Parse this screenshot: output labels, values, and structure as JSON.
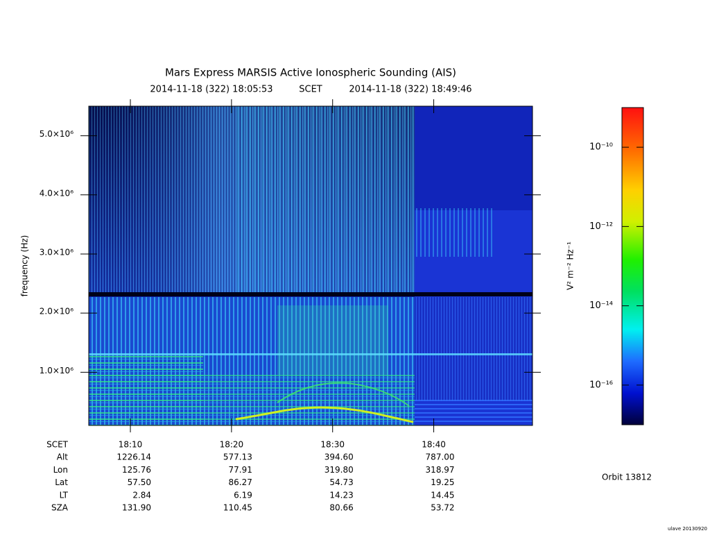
{
  "chart_data": {
    "type": "spectrogram",
    "title": "Mars Express MARSIS Active Ionospheric Sounding (AIS)",
    "subtitle_start": "2014-11-18 (322) 18:05:53",
    "subtitle_label": "SCET",
    "subtitle_end": "2014-11-18 (322) 18:49:46",
    "y_label": "frequency (Hz)",
    "xlim": [
      "2014-11-18T18:05:53Z",
      "2014-11-18T18:49:46Z"
    ],
    "xticks": [
      {
        "value": "2014-11-18T18:10:00Z",
        "label": "18:10"
      },
      {
        "value": "2014-11-18T18:20:00Z",
        "label": "18:20"
      },
      {
        "value": "2014-11-18T18:30:00Z",
        "label": "18:30"
      },
      {
        "value": "2014-11-18T18:40:00Z",
        "label": "18:40"
      }
    ],
    "ylim": [
      100000,
      5500000
    ],
    "yticks": [
      {
        "value": 1000000,
        "label": "1.0×10⁶"
      },
      {
        "value": 2000000,
        "label": "2.0×10⁶"
      },
      {
        "value": 3000000,
        "label": "3.0×10⁶"
      },
      {
        "value": 4000000,
        "label": "4.0×10⁶"
      },
      {
        "value": 5000000,
        "label": "5.0×10⁶"
      }
    ],
    "colorbar": {
      "label": "V² m⁻² Hz⁻¹",
      "log": true,
      "lim": [
        1e-17,
        1e-09
      ],
      "ticks": [
        {
          "value": 1e-10,
          "label": "10⁻¹⁰"
        },
        {
          "value": 1e-12,
          "label": "10⁻¹²"
        },
        {
          "value": 1e-14,
          "label": "10⁻¹⁴"
        },
        {
          "value": 1e-16,
          "label": "10⁻¹⁶"
        }
      ]
    },
    "ephemeris": {
      "time_label": "SCET",
      "rows": [
        {
          "label": "Alt",
          "values": [
            "1226.14",
            "577.13",
            "394.60",
            "787.00"
          ]
        },
        {
          "label": "Lon",
          "values": [
            "125.76",
            "77.91",
            "319.80",
            "318.97"
          ]
        },
        {
          "label": "Lat",
          "values": [
            "57.50",
            "86.27",
            "54.73",
            "19.25"
          ]
        },
        {
          "label": "LT",
          "values": [
            "2.84",
            "6.19",
            "14.23",
            "14.45"
          ]
        },
        {
          "label": "SZA",
          "values": [
            "131.90",
            "110.45",
            "80.66",
            "53.72"
          ]
        }
      ]
    },
    "orbit": "Orbit 13812",
    "footer": "ulave 20130920"
  }
}
